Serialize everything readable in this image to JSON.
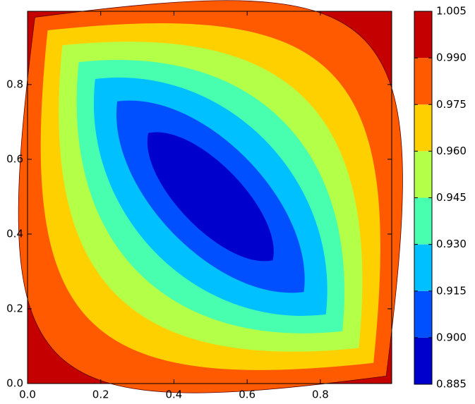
{
  "chart_data": {
    "type": "contourf",
    "xlim": [
      0,
      0.995
    ],
    "ylim": [
      0,
      0.996
    ],
    "xticks": [
      {
        "value": 0,
        "label": "0.0"
      },
      0.2,
      0.4,
      0.6,
      0.8
    ],
    "yticks": [
      {
        "value": 0,
        "label": "0.0"
      },
      0.2,
      0.4,
      0.6,
      0.8
    ],
    "levels": [
      0.885,
      {
        "value": 0.9,
        "label": "0.900"
      },
      0.915,
      {
        "value": 0.93,
        "label": "0.930"
      },
      0.945,
      {
        "value": 0.96,
        "label": "0.960"
      },
      0.975,
      {
        "value": 0.99,
        "label": "0.990"
      },
      1.005
    ],
    "colors": [
      "#0000cd",
      "#0050ff",
      "#00c0ff",
      "#48ffb0",
      "#b4ff48",
      "#ffd000",
      "#ff5a00",
      "#c40000"
    ]
  }
}
